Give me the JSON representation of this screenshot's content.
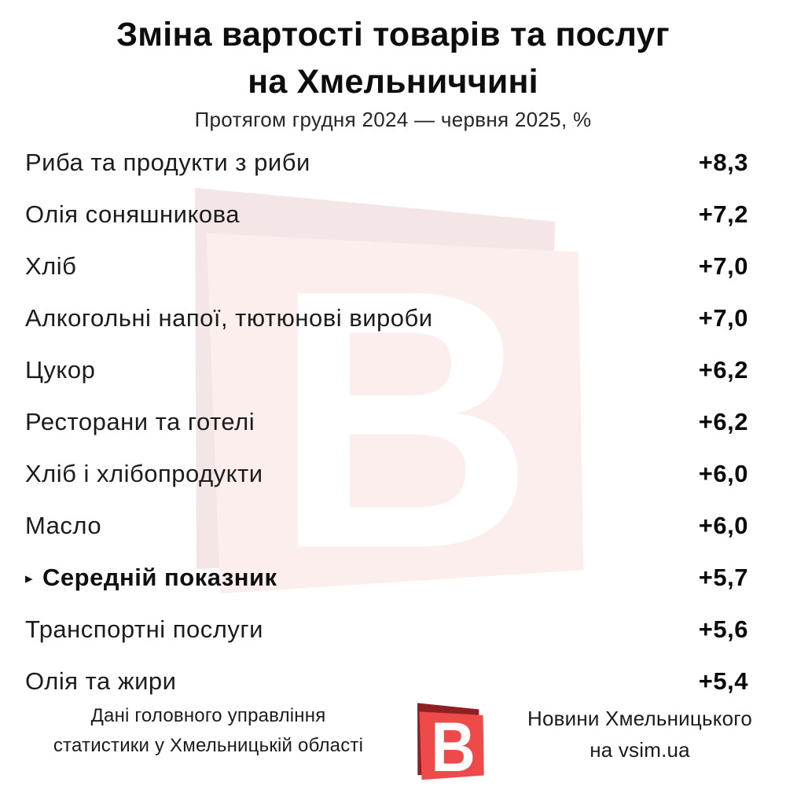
{
  "title": {
    "line1": "Зміна вартості товарів та послуг",
    "line2": "на Хмельниччині"
  },
  "subtitle": "Протягом грудня 2024 — червня 2025, %",
  "rows": [
    {
      "label": "Риба та продукти з риби",
      "value": "+8,3",
      "emphasis": false
    },
    {
      "label": "Олія соняшникова",
      "value": "+7,2",
      "emphasis": false
    },
    {
      "label": "Хліб",
      "value": "+7,0",
      "emphasis": false
    },
    {
      "label": "Алкогольні напої, тютюнові вироби",
      "value": "+7,0",
      "emphasis": false
    },
    {
      "label": "Цукор",
      "value": "+6,2",
      "emphasis": false
    },
    {
      "label": "Ресторани та готелі",
      "value": "+6,2",
      "emphasis": false
    },
    {
      "label": "Хліб і хлібопродукти",
      "value": "+6,0",
      "emphasis": false
    },
    {
      "label": "Масло",
      "value": "+6,0",
      "emphasis": false
    },
    {
      "label": "Середній показник",
      "value": "+5,7",
      "emphasis": true,
      "marker": "▸"
    },
    {
      "label": "Транспортні послуги",
      "value": "+5,6",
      "emphasis": false
    },
    {
      "label": "Олія та жири",
      "value": "+5,4",
      "emphasis": false
    }
  ],
  "chart_data": {
    "type": "table",
    "title": "Зміна вартості товарів та послуг на Хмельниччині",
    "subtitle": "Протягом грудня 2024 — червня 2025, %",
    "unit": "%",
    "categories": [
      "Риба та продукти з риби",
      "Олія соняшникова",
      "Хліб",
      "Алкогольні напої, тютюнові вироби",
      "Цукор",
      "Ресторани та готелі",
      "Хліб і хлібопродукти",
      "Масло",
      "Середній показник",
      "Транспортні послуги",
      "Олія та жири"
    ],
    "values": [
      8.3,
      7.2,
      7.0,
      7.0,
      6.2,
      6.2,
      6.0,
      6.0,
      5.7,
      5.6,
      5.4
    ],
    "highlighted_category": "Середній показник",
    "value_prefix": "+",
    "decimal_separator": ","
  },
  "watermark": {
    "letter": "В",
    "front_color": "#fdeeee",
    "back_color": "#f4e6e6",
    "letter_color": "#ffffff"
  },
  "footer": {
    "source_line1": "Дані головного управління",
    "source_line2": "статистики у Хмельницькій області",
    "brand_line1": "Новини Хмельницького",
    "brand_line2": "на vsim.ua",
    "logo_letter": "В",
    "logo_front_color": "#ee4a4a",
    "logo_back_color": "#8e2023",
    "logo_letter_color": "#ffffff"
  }
}
